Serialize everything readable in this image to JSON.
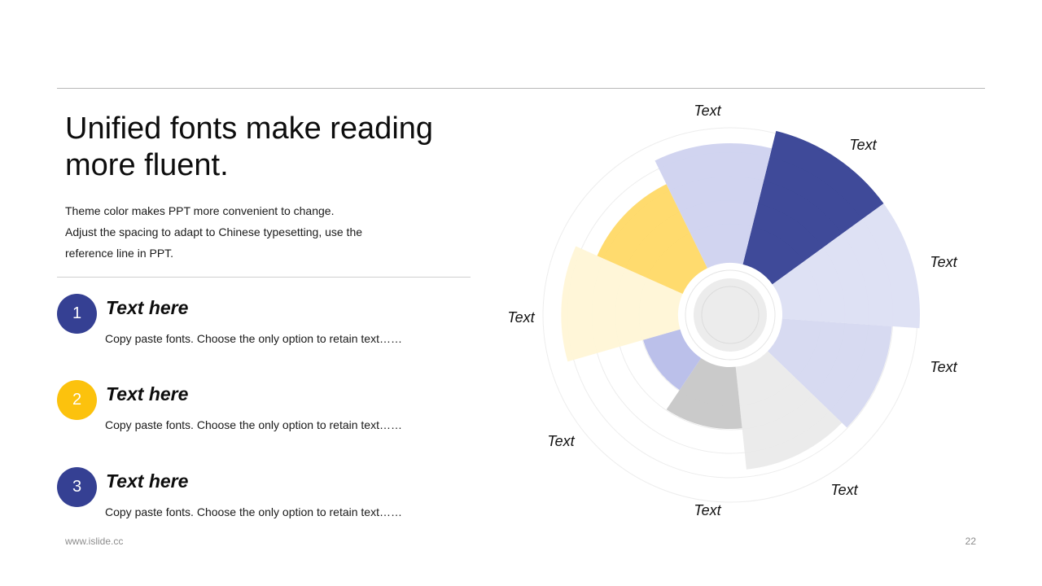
{
  "title": "Unified fonts make reading more fluent.",
  "description": [
    "Theme color makes PPT more convenient  to change.",
    "Adjust the spacing to adapt to Chinese typesetting, use the",
    "reference line in PPT."
  ],
  "items": [
    {
      "number": "1",
      "title": "Text here",
      "text": "Copy paste fonts. Choose the only option to retain text……",
      "color": "#354093"
    },
    {
      "number": "2",
      "title": "Text here",
      "text": "Copy paste fonts. Choose the only option to retain text……",
      "color": "#fcc20d"
    },
    {
      "number": "3",
      "title": "Text here",
      "text": "Copy paste fonts. Choose the only option to retain text……",
      "color": "#354093"
    }
  ],
  "footer": {
    "website": "www.islide.cc",
    "page_number": "22"
  },
  "chart_data": {
    "type": "polar-bar",
    "categories": [
      "Text",
      "Text",
      "Text",
      "Text",
      "Text",
      "Text",
      "Text",
      "Text",
      "Text"
    ],
    "values": [
      10,
      10,
      8,
      7.5,
      4.5,
      2.8,
      8.5,
      6.8,
      8.7
    ],
    "colors": [
      "#354093",
      "#dcdff3",
      "#d5d8f0",
      "#eaeaea",
      "#c7c7c7",
      "#b7bde9",
      "#fff6d6",
      "#ffd966",
      "#cfd2ef"
    ],
    "grid": true
  }
}
